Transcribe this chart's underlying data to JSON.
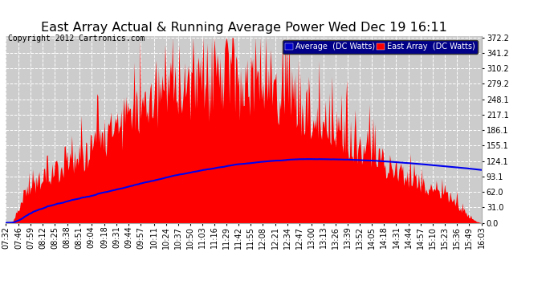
{
  "title": "East Array Actual & Running Average Power Wed Dec 19 16:11",
  "copyright": "Copyright 2012 Cartronics.com",
  "legend_avg": "Average  (DC Watts)",
  "legend_east": "East Array  (DC Watts)",
  "yticks": [
    0.0,
    31.0,
    62.0,
    93.1,
    124.1,
    155.1,
    186.1,
    217.1,
    248.1,
    279.2,
    310.2,
    341.2,
    372.2
  ],
  "bg_color": "#ffffff",
  "plot_bg_color": "#cccccc",
  "grid_color": "#ffffff",
  "east_color": "#ff0000",
  "avg_color": "#0000ee",
  "title_color": "#000000",
  "title_fontsize": 11.5,
  "copyright_fontsize": 7,
  "tick_fontsize": 7,
  "x_tick_labels": [
    "07:32",
    "07:46",
    "07:59",
    "08:12",
    "08:25",
    "08:38",
    "08:51",
    "09:04",
    "09:18",
    "09:31",
    "09:44",
    "09:57",
    "10:11",
    "10:24",
    "10:37",
    "10:50",
    "11:03",
    "11:16",
    "11:29",
    "11:42",
    "11:55",
    "12:08",
    "12:21",
    "12:34",
    "12:47",
    "13:00",
    "13:13",
    "13:26",
    "13:39",
    "13:52",
    "14:05",
    "14:18",
    "14:31",
    "14:44",
    "14:57",
    "15:10",
    "15:23",
    "15:36",
    "15:49",
    "16:03"
  ]
}
